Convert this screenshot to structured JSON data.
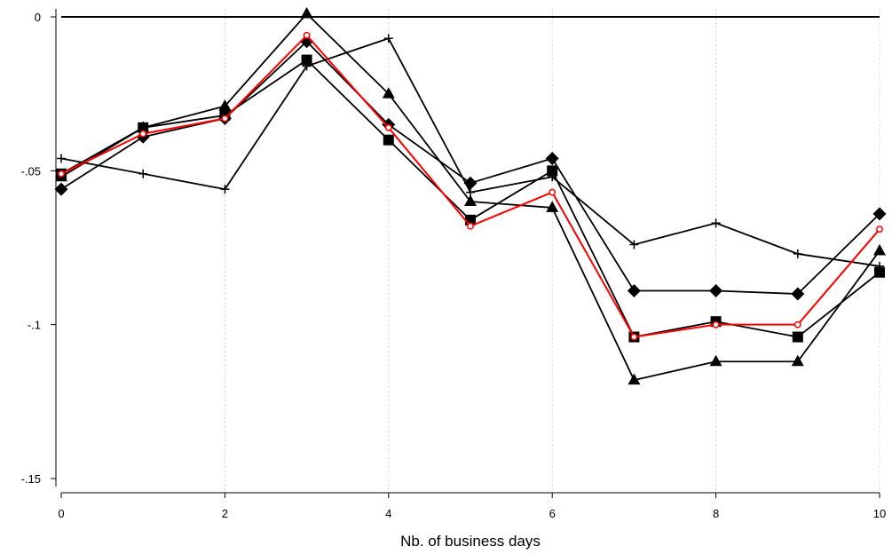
{
  "chart_data": {
    "type": "line",
    "title": "",
    "xlabel": "Nb. of business days",
    "ylabel": "",
    "xlim": [
      0,
      10
    ],
    "ylim": [
      -0.15,
      0
    ],
    "x_ticks": [
      0,
      2,
      4,
      6,
      8,
      10
    ],
    "x_tick_labels": [
      "0",
      "2",
      "4",
      "6",
      "8",
      "10"
    ],
    "y_ticks": [
      0,
      -0.05,
      -0.1,
      -0.15
    ],
    "y_tick_labels": [
      "0",
      "-.05",
      "-.1",
      "-.15"
    ],
    "x_gridlines": "dotted vertical at even x",
    "reference_line_y": 0,
    "legend": "none",
    "x": [
      0,
      1,
      2,
      3,
      4,
      5,
      6,
      7,
      8,
      9,
      10
    ],
    "series": [
      {
        "color": "#ff0000",
        "marker": "circle-hollow",
        "values": [
          -0.051,
          -0.038,
          -0.033,
          -0.006,
          -0.036,
          -0.068,
          -0.057,
          -0.104,
          -0.1,
          -0.1,
          -0.069
        ]
      },
      {
        "color": "#000000",
        "marker": "square",
        "values": [
          -0.051,
          -0.036,
          -0.032,
          -0.014,
          -0.04,
          -0.066,
          -0.05,
          -0.104,
          -0.099,
          -0.104,
          -0.083
        ]
      },
      {
        "color": "#000000",
        "marker": "diamond",
        "values": [
          -0.056,
          -0.039,
          -0.033,
          -0.008,
          -0.035,
          -0.054,
          -0.046,
          -0.089,
          -0.089,
          -0.09,
          -0.064
        ]
      },
      {
        "color": "#000000",
        "marker": "triangle",
        "values": [
          -0.052,
          -0.036,
          -0.029,
          0.001,
          -0.025,
          -0.06,
          -0.062,
          -0.118,
          -0.112,
          -0.112,
          -0.076
        ]
      },
      {
        "color": "#000000",
        "marker": "plus",
        "values": [
          -0.046,
          -0.051,
          -0.056,
          -0.016,
          -0.007,
          -0.057,
          -0.052,
          -0.074,
          -0.067,
          -0.077,
          -0.081
        ]
      }
    ]
  }
}
